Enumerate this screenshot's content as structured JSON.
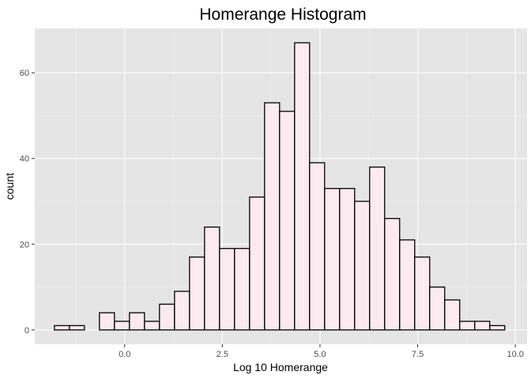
{
  "chart_data": {
    "type": "bar",
    "title": "Homerange Histogram",
    "xlabel": "Log 10 Homerange",
    "ylabel": "count",
    "bin_width": 0.3842,
    "bins": [
      {
        "x": -1.605,
        "count": 1
      },
      {
        "x": -1.221,
        "count": 1
      },
      {
        "x": -0.837,
        "count": 0
      },
      {
        "x": -0.453,
        "count": 4
      },
      {
        "x": -0.068,
        "count": 2
      },
      {
        "x": 0.316,
        "count": 4
      },
      {
        "x": 0.7,
        "count": 2
      },
      {
        "x": 1.084,
        "count": 6
      },
      {
        "x": 1.469,
        "count": 9
      },
      {
        "x": 1.853,
        "count": 17
      },
      {
        "x": 2.237,
        "count": 24
      },
      {
        "x": 2.621,
        "count": 19
      },
      {
        "x": 3.005,
        "count": 19
      },
      {
        "x": 3.39,
        "count": 31
      },
      {
        "x": 3.774,
        "count": 53
      },
      {
        "x": 4.158,
        "count": 51
      },
      {
        "x": 4.542,
        "count": 67
      },
      {
        "x": 4.926,
        "count": 39
      },
      {
        "x": 5.311,
        "count": 33
      },
      {
        "x": 5.695,
        "count": 33
      },
      {
        "x": 6.079,
        "count": 30
      },
      {
        "x": 6.463,
        "count": 38
      },
      {
        "x": 6.847,
        "count": 26
      },
      {
        "x": 7.232,
        "count": 21
      },
      {
        "x": 7.616,
        "count": 17
      },
      {
        "x": 8.0,
        "count": 10
      },
      {
        "x": 8.384,
        "count": 7
      },
      {
        "x": 8.768,
        "count": 2
      },
      {
        "x": 9.153,
        "count": 2
      },
      {
        "x": 9.537,
        "count": 1
      }
    ],
    "xlim": [
      -2.3,
      10.3
    ],
    "ylim": [
      -3.35,
      70.35
    ],
    "x_ticks": [
      0.0,
      2.5,
      5.0,
      7.5,
      10.0
    ],
    "x_tick_labels": [
      "0.0",
      "2.5",
      "5.0",
      "7.5",
      "10.0"
    ],
    "y_ticks": [
      0,
      20,
      40,
      60
    ],
    "y_tick_labels": [
      "0",
      "20",
      "40",
      "60"
    ],
    "grid": true,
    "colors": {
      "panel_background": "#e5e5e5",
      "grid_major": "#ffffff",
      "grid_minor": "#f2f2f2",
      "bar_fill": "#fbeaf0",
      "bar_outline": "#000000",
      "tick_text": "#4d4d4d",
      "tick_mark": "#333333"
    }
  }
}
